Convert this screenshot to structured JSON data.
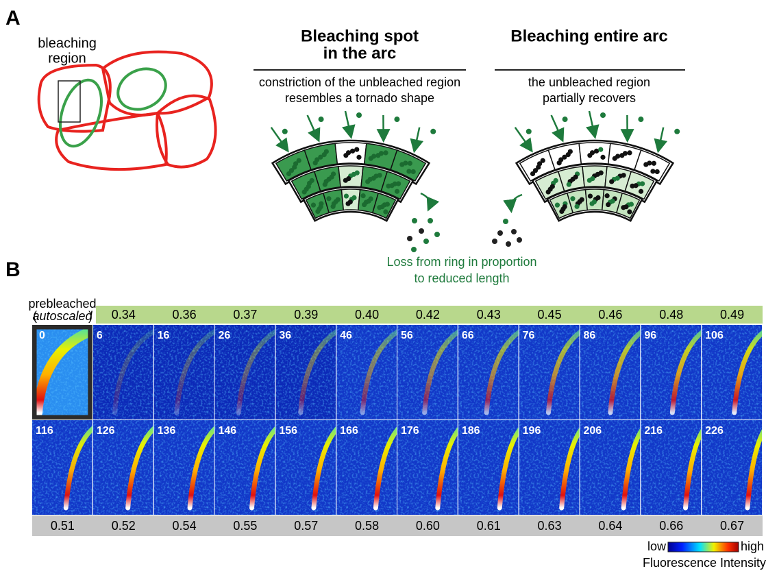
{
  "panel_a": {
    "label": "A",
    "region_label": [
      "bleaching",
      "region"
    ],
    "spot": {
      "title": [
        "Bleaching spot",
        "in the arc"
      ],
      "subtitle": [
        "constriction of the unbleached region",
        "resembles a tornado shape"
      ]
    },
    "entire": {
      "title": [
        "Bleaching entire arc"
      ],
      "subtitle": [
        "the unbleached region",
        "partially recovers"
      ]
    },
    "loss_label": [
      "Loss from ring in proportion",
      "to reduced length"
    ]
  },
  "panel_b": {
    "label": "B",
    "prebleached": "prebleached",
    "autoscaled": "autoscaled",
    "top_values": [
      "0.34",
      "0.36",
      "0.37",
      "0.39",
      "0.40",
      "0.42",
      "0.43",
      "0.45",
      "0.46",
      "0.48",
      "0.49"
    ],
    "bottom_values": [
      "0.51",
      "0.52",
      "0.54",
      "0.55",
      "0.57",
      "0.58",
      "0.60",
      "0.61",
      "0.63",
      "0.64",
      "0.66",
      "0.67"
    ],
    "times_row1": [
      0,
      6,
      16,
      26,
      36,
      46,
      56,
      66,
      76,
      86,
      96,
      106
    ],
    "times_row2": [
      116,
      126,
      136,
      146,
      156,
      166,
      176,
      186,
      196,
      206,
      216,
      226
    ],
    "colorbar": {
      "low": "low",
      "high": "high",
      "caption": "Fluorescence Intensity"
    }
  }
}
